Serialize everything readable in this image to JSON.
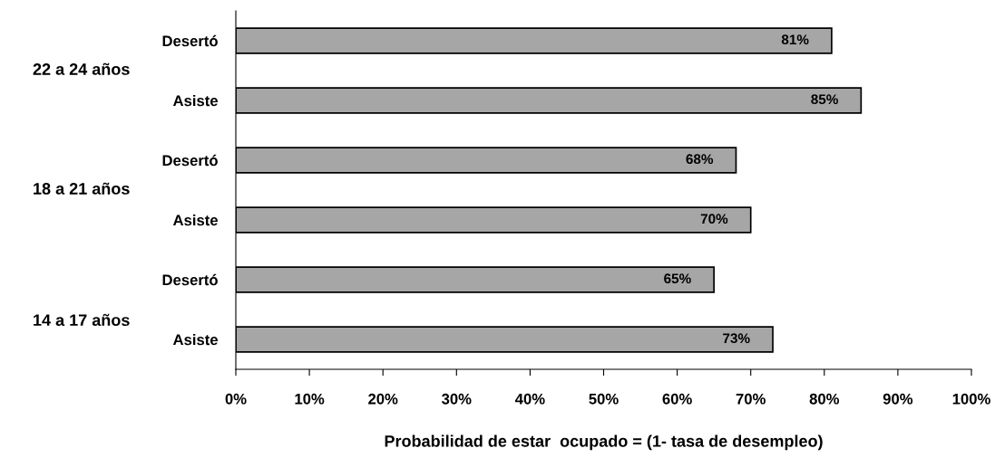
{
  "chart_data": {
    "type": "bar",
    "orientation": "horizontal",
    "xlabel": "Probabilidad de estar  ocupado = (1- tasa de desempleo)",
    "categories": [
      "Desertó",
      "Asiste",
      "Desertó",
      "Asiste",
      "Desertó",
      "Asiste"
    ],
    "values": [
      81,
      85,
      68,
      70,
      65,
      73
    ],
    "value_labels": [
      "81%",
      "85%",
      "68%",
      "70%",
      "65%",
      "73%"
    ],
    "color": "#a6a6a6",
    "xlim": [
      0,
      100
    ],
    "xticks": [
      {
        "value": 0,
        "label": "0%"
      },
      {
        "value": 10,
        "label": "10%"
      },
      {
        "value": 20,
        "label": "20%"
      },
      {
        "value": 30,
        "label": "30%"
      },
      {
        "value": 40,
        "label": "40%"
      },
      {
        "value": 50,
        "label": "50%"
      },
      {
        "value": 60,
        "label": "60%"
      },
      {
        "value": 70,
        "label": "70%"
      },
      {
        "value": 80,
        "label": "80%"
      },
      {
        "value": 90,
        "label": "90%"
      },
      {
        "value": 100,
        "label": "100%"
      }
    ],
    "annotations": [
      "22 a 24 años",
      "18 a 21 años",
      "14 a 17 años"
    ],
    "grid": false,
    "legend": false
  }
}
